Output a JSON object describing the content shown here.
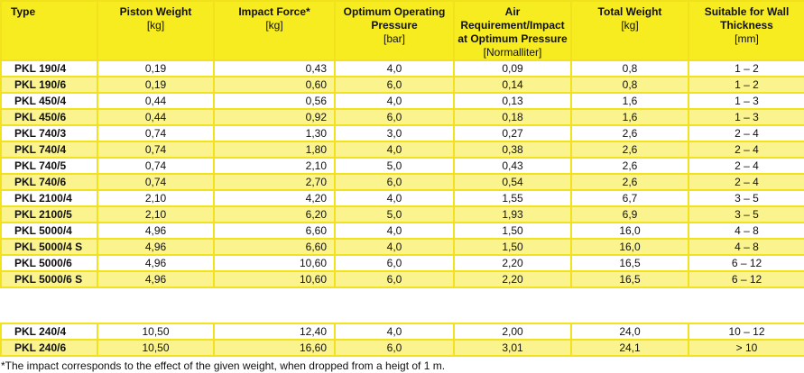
{
  "headers": [
    {
      "title": "Type",
      "unit": ""
    },
    {
      "title": "Piston Weight",
      "unit": "[kg]"
    },
    {
      "title": "Impact Force*",
      "unit": "[kg]"
    },
    {
      "title": "Optimum Operating Pressure",
      "unit": "[bar]"
    },
    {
      "title": "Air Requirement/Impact at Optimum Pressure",
      "unit": "[Normalliter]"
    },
    {
      "title": "Total Weight",
      "unit": "[kg]"
    },
    {
      "title": "Suitable for Wall Thickness",
      "unit": "[mm]"
    }
  ],
  "rows": [
    [
      "PKL 190/4",
      "0,19",
      "0,43",
      "4,0",
      "0,09",
      "0,8",
      "1 – 2"
    ],
    [
      "PKL 190/6",
      "0,19",
      "0,60",
      "6,0",
      "0,14",
      "0,8",
      "1 – 2"
    ],
    [
      "PKL 450/4",
      "0,44",
      "0,56",
      "4,0",
      "0,13",
      "1,6",
      "1 – 3"
    ],
    [
      "PKL 450/6",
      "0,44",
      "0,92",
      "6,0",
      "0,18",
      "1,6",
      "1 – 3"
    ],
    [
      "PKL 740/3",
      "0,74",
      "1,30",
      "3,0",
      "0,27",
      "2,6",
      "2 – 4"
    ],
    [
      "PKL 740/4",
      "0,74",
      "1,80",
      "4,0",
      "0,38",
      "2,6",
      "2 – 4"
    ],
    [
      "PKL 740/5",
      "0,74",
      "2,10",
      "5,0",
      "0,43",
      "2,6",
      "2 – 4"
    ],
    [
      "PKL 740/6",
      "0,74",
      "2,70",
      "6,0",
      "0,54",
      "2,6",
      "2 – 4"
    ],
    [
      "PKL 2100/4",
      "2,10",
      "4,20",
      "4,0",
      "1,55",
      "6,7",
      "3 – 5"
    ],
    [
      "PKL 2100/5",
      "2,10",
      "6,20",
      "5,0",
      "1,93",
      "6,9",
      "3 – 5"
    ],
    [
      "PKL 5000/4",
      "4,96",
      "6,60",
      "4,0",
      "1,50",
      "16,0",
      "4 – 8"
    ],
    [
      "PKL 5000/4 S",
      "4,96",
      "6,60",
      "4,0",
      "1,50",
      "16,0",
      "4 – 8"
    ],
    [
      "PKL 5000/6",
      "4,96",
      "10,60",
      "6,0",
      "2,20",
      "16,5",
      "6 – 12"
    ],
    [
      "PKL 5000/6 S",
      "4,96",
      "10,60",
      "6,0",
      "2,20",
      "16,5",
      "6 – 12"
    ]
  ],
  "extra_rows": [
    [
      "PKL 240/4",
      "10,50",
      "12,40",
      "4,0",
      "2,00",
      "24,0",
      "10 – 12"
    ],
    [
      "PKL 240/6",
      "10,50",
      "16,60",
      "6,0",
      "3,01",
      "24,1",
      "> 10"
    ]
  ],
  "footnote": "*The impact corresponds to the effect of the given weight, when dropped from a heigt of 1 m."
}
